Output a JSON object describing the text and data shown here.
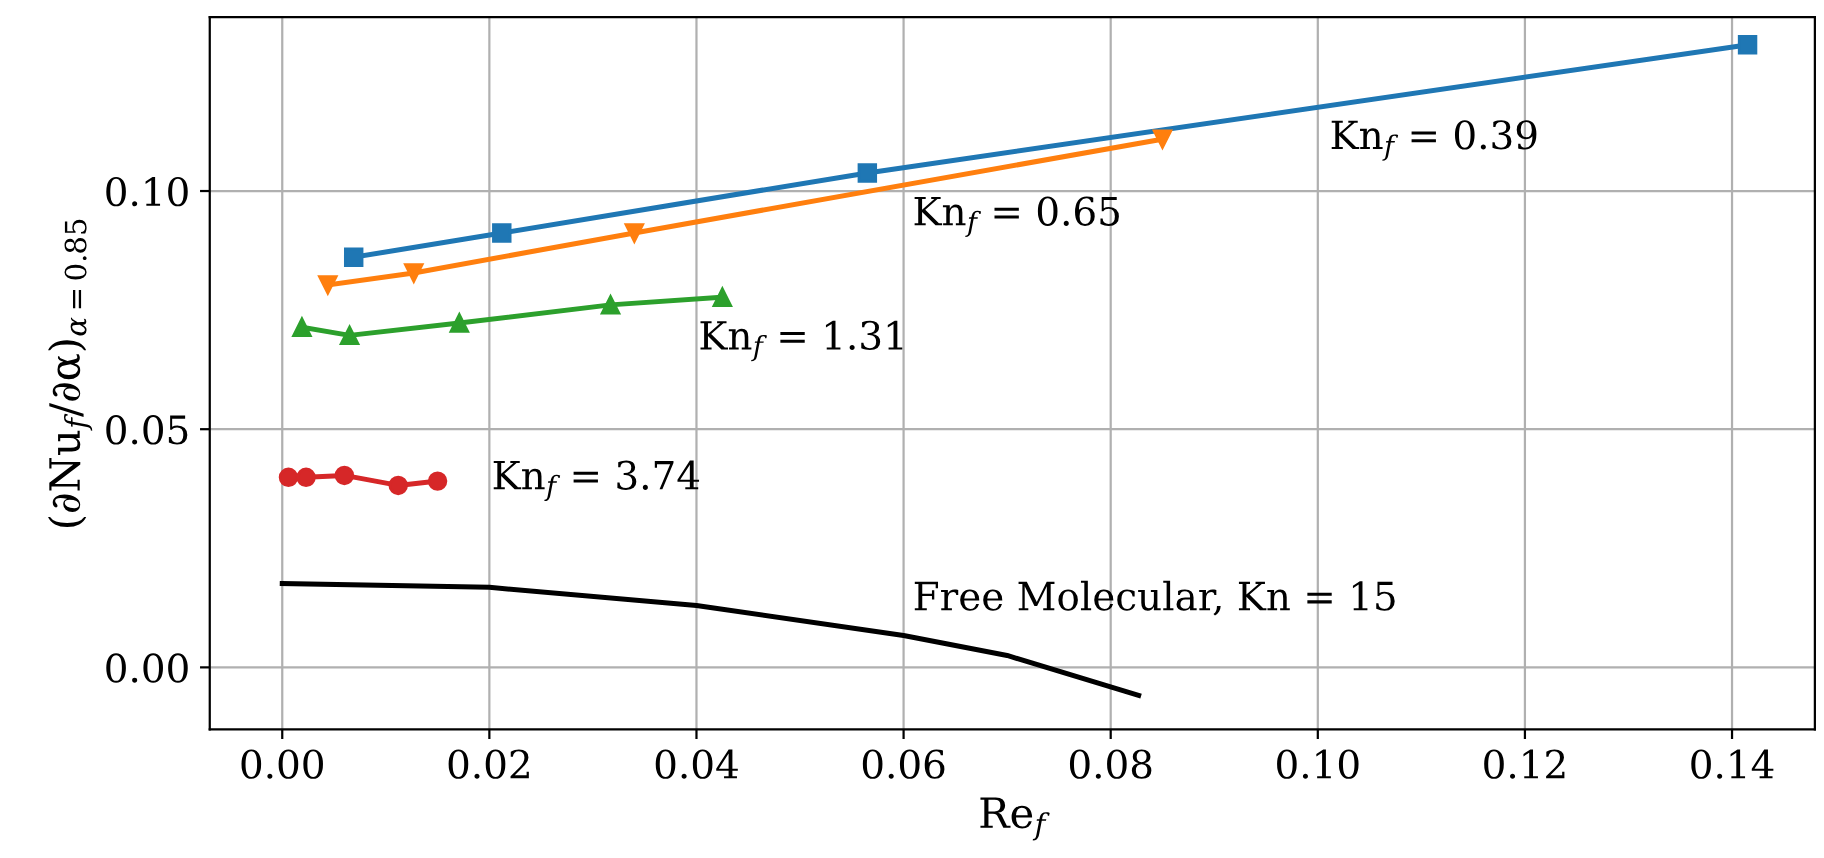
{
  "chart_data": {
    "type": "line",
    "xlabel": "Re$_{f}$",
    "ylabel": "(∂Nu$_{f}$/∂α)$_{α=0.85}$",
    "xlim": [
      -0.007,
      0.148
    ],
    "ylim": [
      -0.013,
      0.1365
    ],
    "xticks": [
      {
        "value": 0,
        "label": "0.00"
      },
      {
        "value": 0.02,
        "label": "0.02"
      },
      {
        "value": 0.04,
        "label": "0.04"
      },
      {
        "value": 0.06,
        "label": "0.06"
      },
      {
        "value": 0.08,
        "label": "0.08"
      },
      {
        "value": 0.1,
        "label": "0.10"
      },
      {
        "value": 0.12,
        "label": "0.12"
      },
      {
        "value": 0.14,
        "label": "0.14"
      }
    ],
    "yticks": [
      {
        "value": 0,
        "label": "0.00"
      },
      {
        "value": 0.05,
        "label": "0.05"
      },
      {
        "value": 0.1,
        "label": "0.10"
      }
    ],
    "grid": true,
    "series": [
      {
        "name": "Kn$_{f}$ = 0.39",
        "color": "#1f77b4",
        "marker": "square",
        "x": [
          0.0069,
          0.0212,
          0.0565,
          0.1415
        ],
        "values": [
          0.0861,
          0.0912,
          0.1038,
          0.1307
        ]
      },
      {
        "name": "Kn$_{f}$ = 0.65",
        "color": "#ff7f0e",
        "marker": "triangle_down",
        "x": [
          0.0044,
          0.0127,
          0.034,
          0.085
        ],
        "values": [
          0.0803,
          0.0828,
          0.0912,
          0.1109
        ]
      },
      {
        "name": "Kn$_{f}$ = 1.31",
        "color": "#2ca02c",
        "marker": "triangle",
        "x": [
          0.0019,
          0.0065,
          0.0171,
          0.0317,
          0.0425
        ],
        "values": [
          0.0714,
          0.0697,
          0.0723,
          0.0761,
          0.0777
        ]
      },
      {
        "name": "Kn$_{f}$ = 3.74",
        "color": "#d62728",
        "marker": "circle",
        "x": [
          0.0006,
          0.0023,
          0.006,
          0.0112,
          0.015
        ],
        "values": [
          0.0399,
          0.0399,
          0.0403,
          0.0382,
          0.0391
        ]
      },
      {
        "name": "Free Molecular, Kn = 15",
        "color": "#000000",
        "marker": "none",
        "x": [
          0,
          0.02,
          0.04,
          0.06,
          0.07,
          0.0827
        ],
        "values": [
          0.0176,
          0.0168,
          0.013,
          0.0067,
          0.0025,
          -0.0059
        ]
      }
    ]
  }
}
